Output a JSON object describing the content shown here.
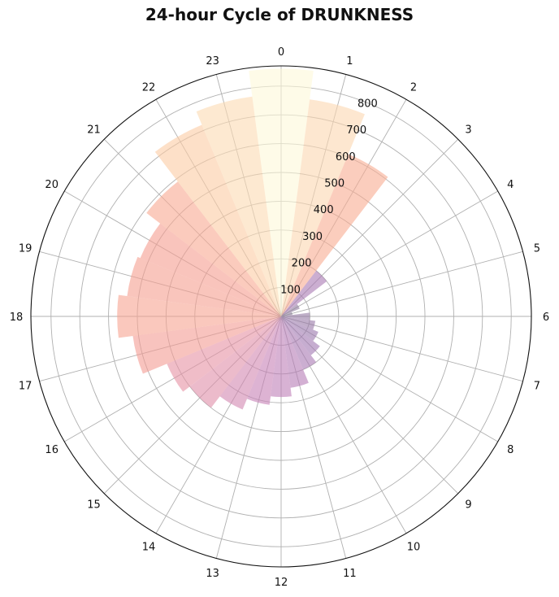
{
  "chart_data": {
    "type": "bar",
    "subtype": "polar",
    "title": "24-hour Cycle of DRUNKNESS",
    "categories": [
      "0",
      "1",
      "2",
      "3",
      "4",
      "5",
      "6",
      "7",
      "8",
      "9",
      "10",
      "11",
      "12",
      "13",
      "14",
      "15",
      "16",
      "17",
      "18",
      "19",
      "20",
      "21",
      "22",
      "23"
    ],
    "values": [
      860,
      760,
      610,
      200,
      70,
      40,
      100,
      120,
      140,
      170,
      200,
      250,
      280,
      310,
      350,
      400,
      430,
      520,
      570,
      540,
      530,
      590,
      720,
      770
    ],
    "r_ticks": [
      100,
      200,
      300,
      400,
      500,
      600,
      700,
      800
    ],
    "r_max": 870,
    "theta_direction": "clockwise",
    "theta_zero": "top",
    "grid": true,
    "colormap": "magma-like (purple to pale yellow by value)",
    "bar_alpha": 0.6,
    "legend": "none"
  }
}
